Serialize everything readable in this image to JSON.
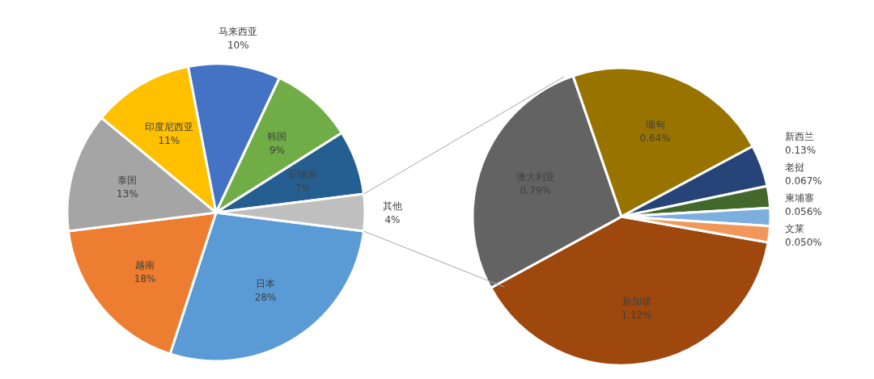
{
  "chart_data": [
    {
      "type": "pie",
      "categories": [
        "日本",
        "越南",
        "泰国",
        "印度尼西亚",
        "马来西亚",
        "韩国",
        "菲律宾",
        "其他"
      ],
      "values": [
        28,
        18,
        13,
        11,
        10,
        9,
        7,
        4
      ],
      "value_labels": [
        "28%",
        "18%",
        "13%",
        "11%",
        "10%",
        "9%",
        "7%",
        "4%"
      ],
      "colors": [
        "#5b9bd5",
        "#ed7d31",
        "#a5a5a5",
        "#ffc000",
        "#4472c4",
        "#70ad47",
        "#255e91",
        "#bfbfbf"
      ]
    },
    {
      "type": "pie",
      "categories": [
        "新加坡",
        "澳大利亚",
        "缅甸",
        "新西兰",
        "老挝",
        "柬埔寨",
        "文莱"
      ],
      "values": [
        1.12,
        0.79,
        0.64,
        0.13,
        0.067,
        0.056,
        0.05
      ],
      "value_labels": [
        "1.12%",
        "0.79%",
        "0.64%",
        "0.13%",
        "0.067%",
        "0.056%",
        "0.050%"
      ],
      "colors": [
        "#9e480e",
        "#636363",
        "#997300",
        "#264478",
        "#43682b",
        "#7cafdd",
        "#f1975a"
      ]
    }
  ]
}
